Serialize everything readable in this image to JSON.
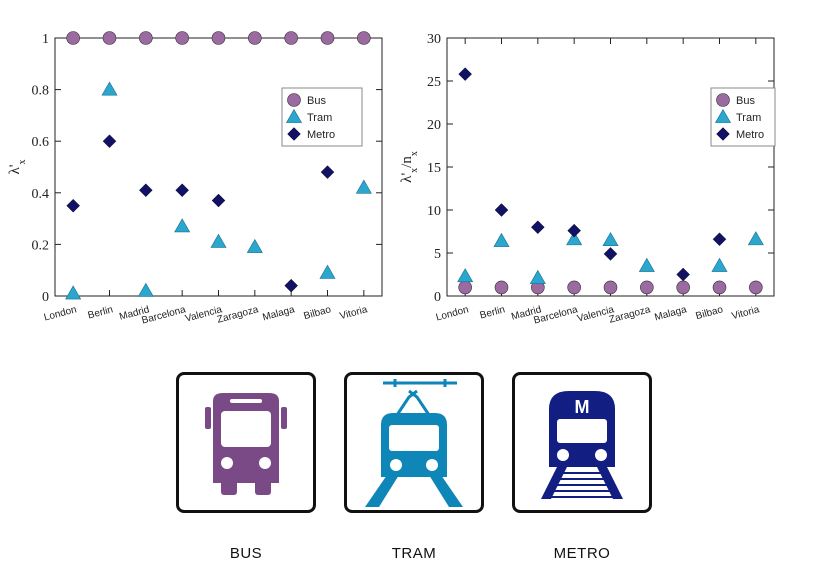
{
  "chart_data": [
    {
      "type": "scatter",
      "title": "",
      "ylabel_main": "λ'",
      "ylabel_sub": "x",
      "xlabel": "",
      "ylim": [
        0,
        1
      ],
      "yticks": [
        "0",
        "0.2",
        "0.4",
        "0.6",
        "0.8",
        "1"
      ],
      "categories": [
        "London",
        "Berlin",
        "Madrid",
        "Barcelona",
        "Valencia",
        "Zaragoza",
        "Malaga",
        "Bilbao",
        "Vitoria"
      ],
      "legend_position": "top-right",
      "series": [
        {
          "name": "Bus",
          "marker": "circle",
          "color": "#9b6aa0",
          "values": [
            1,
            1,
            1,
            1,
            1,
            1,
            1,
            1,
            1
          ]
        },
        {
          "name": "Tram",
          "marker": "triangle",
          "color": "#2aa6cf",
          "values": [
            0.01,
            0.8,
            0.02,
            0.27,
            0.21,
            0.19,
            null,
            0.09,
            0.42
          ]
        },
        {
          "name": "Metro",
          "marker": "diamond",
          "color": "#111166",
          "values": [
            0.35,
            0.6,
            0.41,
            0.41,
            0.37,
            null,
            0.04,
            0.48,
            null
          ]
        }
      ]
    },
    {
      "type": "scatter",
      "title": "",
      "ylabel_main": "λ'",
      "ylabel_sub": "x",
      "ylabel_tail": "/n",
      "ylabel_sub2": "x",
      "xlabel": "",
      "ylim": [
        0,
        30
      ],
      "yticks": [
        "0",
        "5",
        "10",
        "15",
        "20",
        "25",
        "30"
      ],
      "categories": [
        "London",
        "Berlin",
        "Madrid",
        "Barcelona",
        "Valencia",
        "Zaragoza",
        "Malaga",
        "Bilbao",
        "Vitoria"
      ],
      "legend_position": "top-right",
      "series": [
        {
          "name": "Bus",
          "marker": "circle",
          "color": "#9b6aa0",
          "values": [
            1,
            1,
            1,
            1,
            1,
            1,
            1,
            1,
            1
          ]
        },
        {
          "name": "Tram",
          "marker": "triangle",
          "color": "#2aa6cf",
          "values": [
            2.3,
            6.4,
            2.1,
            6.6,
            6.5,
            3.5,
            null,
            3.5,
            6.6
          ]
        },
        {
          "name": "Metro",
          "marker": "diamond",
          "color": "#111166",
          "values": [
            25.8,
            10,
            8,
            7.6,
            4.9,
            null,
            2.5,
            6.6,
            null
          ]
        }
      ]
    }
  ],
  "icons": [
    {
      "name": "bus-icon",
      "label": "BUS",
      "color": "#7a4a87"
    },
    {
      "name": "tram-icon",
      "label": "TRAM",
      "color": "#0f86b8"
    },
    {
      "name": "metro-icon",
      "label": "METRO",
      "color": "#131e82",
      "badge": "M"
    }
  ]
}
